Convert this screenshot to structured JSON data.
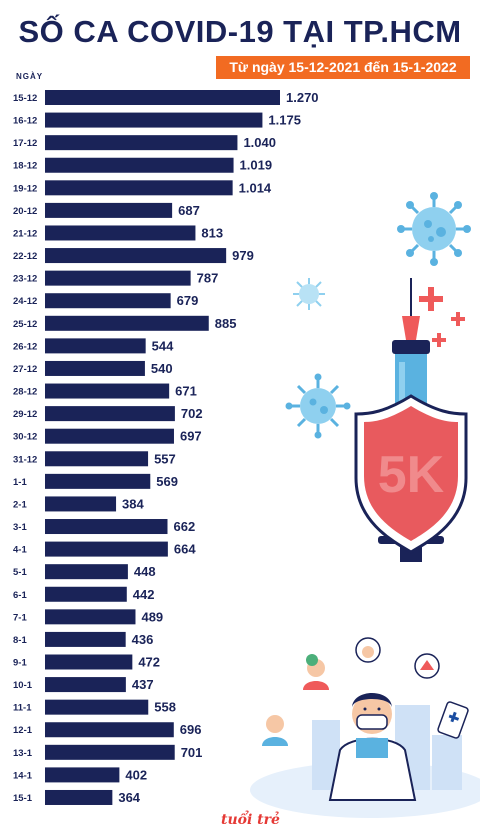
{
  "header": {
    "title": "SỐ CA COVID-19 TẠI TP.HCM",
    "subtitle": "Từ ngày 15-12-2021 đến 15-1-2022",
    "axis_label": "NGÀY"
  },
  "illustration": {
    "shield_text": "5K",
    "logo_text": "tuổi trẻ"
  },
  "colors": {
    "bar": "#1a2358",
    "title": "#1a2358",
    "subtitle_bg": "#f26b22",
    "shield": "#e85a5e",
    "virus": "#5ab2e0"
  },
  "chart_data": {
    "type": "bar",
    "orientation": "horizontal",
    "categories": [
      "15-12",
      "16-12",
      "17-12",
      "18-12",
      "19-12",
      "20-12",
      "21-12",
      "22-12",
      "23-12",
      "24-12",
      "25-12",
      "26-12",
      "27-12",
      "28-12",
      "29-12",
      "30-12",
      "31-12",
      "1-1",
      "2-1",
      "3-1",
      "4-1",
      "5-1",
      "6-1",
      "7-1",
      "8-1",
      "9-1",
      "10-1",
      "11-1",
      "12-1",
      "13-1",
      "14-1",
      "15-1"
    ],
    "values": [
      1270,
      1175,
      1040,
      1019,
      1014,
      687,
      813,
      979,
      787,
      679,
      885,
      544,
      540,
      671,
      702,
      697,
      557,
      569,
      384,
      662,
      664,
      448,
      442,
      489,
      436,
      472,
      437,
      558,
      696,
      701,
      402,
      364
    ],
    "value_labels": [
      "1.270",
      "1.175",
      "1.040",
      "1.019",
      "1.014",
      "687",
      "813",
      "979",
      "787",
      "679",
      "885",
      "544",
      "540",
      "671",
      "702",
      "697",
      "557",
      "569",
      "384",
      "662",
      "664",
      "448",
      "442",
      "489",
      "436",
      "472",
      "437",
      "558",
      "696",
      "701",
      "402",
      "364"
    ],
    "title": "SỐ CA COVID-19 TẠI TP.HCM",
    "subtitle": "Từ ngày 15-12-2021 đến 15-1-2022",
    "ylabel": "NGÀY",
    "xlim": [
      0,
      1270
    ],
    "grid": false,
    "legend": "none"
  }
}
